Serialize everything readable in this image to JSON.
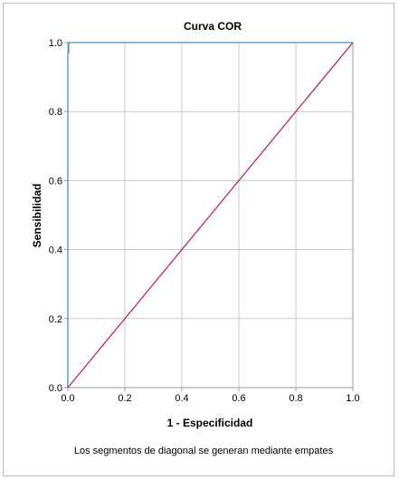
{
  "chart_data": {
    "type": "line",
    "title": "Curva COR",
    "xlabel": "1 - Especificidad",
    "ylabel": "Sensibilidad",
    "xlim": [
      0,
      1
    ],
    "ylim": [
      0,
      1
    ],
    "x_ticks": [
      "0.0",
      "0.2",
      "0.4",
      "0.6",
      "0.8",
      "1.0"
    ],
    "y_ticks": [
      "0.0",
      "0.2",
      "0.4",
      "0.6",
      "0.8",
      "1.0"
    ],
    "grid": true,
    "series": [
      {
        "color": "#4a90c8",
        "x": [
          0.0,
          0.0,
          0.003,
          0.003,
          1.0
        ],
        "y": [
          0.0,
          0.97,
          0.97,
          1.0,
          1.0
        ]
      },
      {
        "color": "#c4245a",
        "x": [
          0.0,
          1.0
        ],
        "y": [
          0.0,
          1.0
        ]
      }
    ],
    "footnote": "Los segmentos de diagonal se generan mediante empates"
  },
  "colors": {
    "grid": "#c8c8c8",
    "axis": "#9a9a9a"
  }
}
